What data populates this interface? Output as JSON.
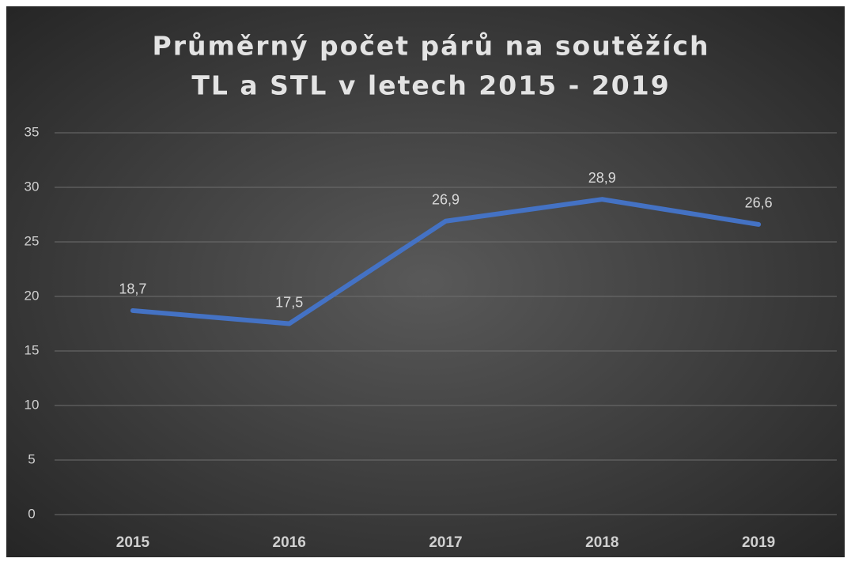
{
  "chart_data": {
    "type": "line",
    "title": [
      "Průměrný počet párů na soutěžích",
      "TL a STL v letech 2015 - 2019"
    ],
    "categories": [
      "2015",
      "2016",
      "2017",
      "2018",
      "2019"
    ],
    "series": [
      {
        "name": "Průměrný počet párů",
        "color": "#4472c4",
        "values": [
          18.7,
          17.5,
          26.9,
          28.9,
          26.6
        ],
        "value_labels": [
          "18,7",
          "17,5",
          "26,9",
          "28,9",
          "26,6"
        ]
      }
    ],
    "ylim": [
      0,
      35
    ],
    "yticks": [
      0,
      5,
      10,
      15,
      20,
      25,
      30,
      35
    ],
    "grid": true
  }
}
